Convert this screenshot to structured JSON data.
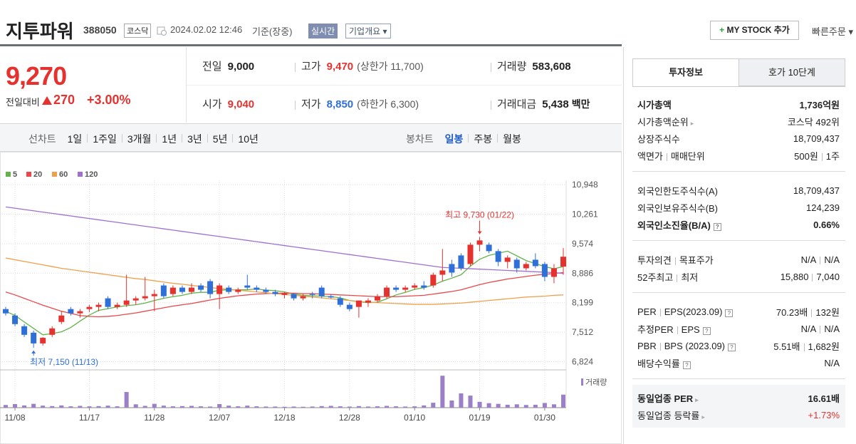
{
  "header": {
    "name": "지투파워",
    "code": "388050",
    "market": "코스닥",
    "datetime": "2024.02.02 12:46",
    "basis": "기준(장중)",
    "realtime": "실시간",
    "company_info": "기업개요",
    "my_stock": "MY STOCK 추가",
    "quick_order": "빠른주문"
  },
  "price": {
    "current": "9,270",
    "change_label": "전일대비",
    "change": "270",
    "change_rate": "+3.00%"
  },
  "quotes": [
    [
      {
        "label": "전일",
        "value": "9,000"
      },
      {
        "label": "고가",
        "value": "9,470",
        "limit": "(상한가 11,700)",
        "color": "#e6322f"
      },
      {
        "label": "거래량",
        "value": "583,608"
      }
    ],
    [
      {
        "label": "시가",
        "value": "9,040",
        "color": "#e6322f"
      },
      {
        "label": "저가",
        "value": "8,850",
        "limit": "(하한가 6,300)",
        "color": "#2f6fd8"
      },
      {
        "label": "거래대금",
        "value": "5,438",
        "unit": "백만"
      }
    ]
  ],
  "periods": {
    "line_label": "선차트",
    "line": [
      "1일",
      "1주일",
      "3개월",
      "1년",
      "3년",
      "5년",
      "10년"
    ],
    "candle_label": "봉차트",
    "candle": [
      "일봉",
      "주봉",
      "월봉"
    ],
    "active_candle": 0
  },
  "chart_data": {
    "type": "candlestick",
    "categories": [
      null,
      "11/08",
      null,
      null,
      null,
      null,
      null,
      null,
      null,
      "11/17",
      null,
      null,
      null,
      null,
      null,
      null,
      "11/28",
      null,
      null,
      null,
      null,
      null,
      null,
      "12/07",
      null,
      null,
      null,
      null,
      null,
      null,
      "12/18",
      null,
      null,
      null,
      null,
      null,
      null,
      "12/28",
      null,
      null,
      null,
      null,
      null,
      null,
      "01/10",
      null,
      null,
      null,
      null,
      null,
      null,
      "01/19",
      null,
      null,
      null,
      null,
      null,
      null,
      "01/30",
      null,
      null
    ],
    "open": [
      8050,
      7900,
      7650,
      7500,
      7250,
      7450,
      7750,
      8050,
      7950,
      8050,
      8100,
      8300,
      8100,
      8150,
      8250,
      8300,
      8350,
      8600,
      8400,
      8550,
      8450,
      8600,
      8700,
      8400,
      8550,
      8450,
      8600,
      8550,
      8500,
      8450,
      8380,
      8400,
      8300,
      8400,
      8550,
      8350,
      8300,
      8150,
      8100,
      8200,
      8250,
      8350,
      8550,
      8500,
      8550,
      8600,
      8600,
      8850,
      9100,
      9300,
      9100,
      9550,
      9550,
      9400,
      9150,
      9200,
      9000,
      9200,
      9100,
      8800,
      9040
    ],
    "high": [
      8100,
      7950,
      7700,
      7550,
      7400,
      7650,
      8000,
      8100,
      8050,
      8150,
      8200,
      8350,
      8200,
      8850,
      8350,
      8800,
      8500,
      8650,
      8600,
      8600,
      8650,
      8650,
      8750,
      8650,
      8600,
      8550,
      8850,
      8600,
      8550,
      8500,
      8450,
      8420,
      8400,
      8450,
      8600,
      8400,
      8350,
      8200,
      8250,
      8300,
      8400,
      8600,
      8600,
      8600,
      8650,
      8700,
      8900,
      9450,
      9200,
      9350,
      9600,
      9730,
      9600,
      9450,
      9300,
      9250,
      9150,
      9350,
      9150,
      9100,
      9470
    ],
    "low": [
      7900,
      7650,
      7400,
      7150,
      7200,
      7400,
      7700,
      7900,
      7850,
      7980,
      8000,
      8050,
      8050,
      8100,
      8150,
      8250,
      8000,
      8300,
      8350,
      8400,
      8400,
      8450,
      8300,
      8050,
      8400,
      8400,
      8500,
      8450,
      8400,
      8350,
      8300,
      8250,
      8250,
      8300,
      8300,
      8300,
      8100,
      8000,
      7850,
      8100,
      8200,
      8300,
      8450,
      8450,
      8500,
      8500,
      8550,
      8700,
      8800,
      8950,
      9050,
      9400,
      9350,
      9050,
      9000,
      8900,
      8950,
      9000,
      8700,
      8650,
      8850
    ],
    "close": [
      7950,
      7700,
      7450,
      7250,
      7380,
      7600,
      7900,
      7950,
      8000,
      8100,
      8150,
      8100,
      8150,
      8250,
      8300,
      8350,
      8400,
      8350,
      8550,
      8450,
      8550,
      8500,
      8400,
      8600,
      8450,
      8500,
      8550,
      8500,
      8450,
      8400,
      8420,
      8300,
      8350,
      8380,
      8350,
      8320,
      8150,
      8050,
      8250,
      8250,
      8350,
      8550,
      8500,
      8550,
      8600,
      8550,
      8850,
      8950,
      8900,
      9000,
      9550,
      9650,
      9400,
      9150,
      9250,
      9000,
      9100,
      9050,
      8800,
      9000,
      9270
    ],
    "up_color": "#e6322f",
    "down_color": "#2f6fd8",
    "series": [
      {
        "name": "5",
        "color": "#62b44a",
        "values": [
          8000,
          7900,
          7750,
          7600,
          7450,
          7480,
          7520,
          7620,
          7770,
          7910,
          8020,
          8060,
          8100,
          8130,
          8150,
          8190,
          8250,
          8300,
          8340,
          8370,
          8420,
          8440,
          8440,
          8490,
          8500,
          8500,
          8500,
          8520,
          8490,
          8480,
          8450,
          8400,
          8370,
          8360,
          8350,
          8340,
          8310,
          8250,
          8220,
          8200,
          8210,
          8290,
          8380,
          8440,
          8510,
          8550,
          8610,
          8700,
          8770,
          8850,
          9050,
          9210,
          9300,
          9350,
          9400,
          9290,
          9180,
          9110,
          9040,
          8990,
          9040
        ]
      },
      {
        "name": "20",
        "color": "#e8494c",
        "values": [
          8450,
          8380,
          8300,
          8220,
          8140,
          8070,
          8000,
          7950,
          7900,
          7880,
          7870,
          7880,
          7900,
          7930,
          7960,
          8000,
          8040,
          8080,
          8120,
          8150,
          8180,
          8220,
          8260,
          8300,
          8330,
          8360,
          8380,
          8400,
          8410,
          8420,
          8420,
          8420,
          8410,
          8410,
          8400,
          8390,
          8380,
          8370,
          8360,
          8350,
          8340,
          8340,
          8340,
          8350,
          8360,
          8370,
          8400,
          8430,
          8460,
          8500,
          8560,
          8620,
          8670,
          8710,
          8750,
          8780,
          8810,
          8840,
          8860,
          8880,
          8900
        ]
      },
      {
        "name": "60",
        "color": "#f0a04b",
        "values": [
          9240,
          9200,
          9160,
          9120,
          9080,
          9040,
          9000,
          8970,
          8940,
          8910,
          8880,
          8850,
          8820,
          8790,
          8760,
          8740,
          8710,
          8680,
          8650,
          8630,
          8600,
          8580,
          8550,
          8530,
          8510,
          8490,
          8470,
          8450,
          8430,
          8410,
          8390,
          8370,
          8350,
          8330,
          8310,
          8290,
          8270,
          8250,
          8230,
          8210,
          8200,
          8190,
          8180,
          8170,
          8160,
          8160,
          8160,
          8170,
          8180,
          8190,
          8210,
          8230,
          8250,
          8270,
          8290,
          8310,
          8330,
          8340,
          8350,
          8370,
          8380
        ]
      },
      {
        "name": "120",
        "color": "#a070d0",
        "values": [
          10430,
          10400,
          10370,
          10340,
          10310,
          10280,
          10250,
          10220,
          10190,
          10160,
          10130,
          10100,
          10070,
          10040,
          10010,
          9980,
          9950,
          9920,
          9890,
          9860,
          9830,
          9800,
          9770,
          9740,
          9710,
          9680,
          9650,
          9620,
          9590,
          9560,
          9530,
          9500,
          9470,
          9440,
          9410,
          9380,
          9350,
          9320,
          9290,
          9260,
          9230,
          9200,
          9170,
          9140,
          9110,
          9080,
          9050,
          9020,
          9010,
          9000,
          8990,
          8980,
          8970,
          8960,
          8950,
          8940,
          8930,
          8920,
          8910,
          8900,
          8880
        ]
      }
    ],
    "volume": {
      "name": "거래량",
      "color": "#9b7fc7",
      "lim": [
        0,
        1500000
      ],
      "values": [
        120000,
        160000,
        100000,
        170000,
        90000,
        70000,
        100000,
        60000,
        80000,
        60000,
        70000,
        90000,
        60000,
        700000,
        150000,
        80000,
        170000,
        90000,
        60000,
        70000,
        80000,
        60000,
        50000,
        160000,
        90000,
        60000,
        90000,
        60000,
        50000,
        50000,
        40000,
        50000,
        40000,
        50000,
        70000,
        80000,
        60000,
        50000,
        70000,
        50000,
        60000,
        80000,
        60000,
        50000,
        60000,
        100000,
        220000,
        1430000,
        320000,
        640000,
        540000,
        260000,
        200000,
        170000,
        130000,
        150000,
        120000,
        130000,
        210000,
        150000,
        583608
      ]
    },
    "ylim": [
      6600,
      11150
    ],
    "yticks": [
      {
        "value": 10948,
        "label": "10,948"
      },
      {
        "value": 10261,
        "label": "10,261"
      },
      {
        "value": 9574,
        "label": "9,574"
      },
      {
        "value": 8886,
        "label": "8,886"
      },
      {
        "value": 8199,
        "label": "8,199"
      },
      {
        "value": 7512,
        "label": "7,512"
      },
      {
        "value": 6824,
        "label": "6,824"
      }
    ],
    "grid": true,
    "annotations": [
      {
        "label": "최고 9,730 (01/22)",
        "of": "high",
        "color": "#e6322f"
      },
      {
        "label": "최저 7,150 (11/13)",
        "of": "low",
        "color": "#2f6fd8"
      }
    ]
  },
  "info": {
    "tabs": [
      "투자정보",
      "호가 10단계"
    ],
    "active_tab": 0,
    "groups": [
      {
        "rows": [
          {
            "label": [
              "시가총액"
            ],
            "value": [
              "1,736억원"
            ],
            "bold": true
          },
          {
            "label": [
              "시가총액순위"
            ],
            "arrow": true,
            "value": [
              "코스닥 492위"
            ]
          },
          {
            "label": [
              "상장주식수"
            ],
            "value": [
              "18,709,437"
            ]
          },
          {
            "label": [
              "액면가",
              "매매단위"
            ],
            "value": [
              "500원",
              "1주"
            ]
          }
        ]
      },
      {
        "rows": [
          {
            "label": [
              "외국인한도주식수(A)"
            ],
            "value": [
              "18,709,437"
            ]
          },
          {
            "label": [
              "외국인보유주식수(B)"
            ],
            "value": [
              "124,239"
            ]
          },
          {
            "label": [
              "외국인소진율(B/A)"
            ],
            "help": true,
            "bold": true,
            "value": [
              "0.66%"
            ]
          }
        ]
      },
      {
        "rows": [
          {
            "label": [
              "투자의견",
              "목표주가"
            ],
            "value": [
              "N/A",
              "N/A"
            ]
          },
          {
            "label": [
              "52주최고",
              "최저"
            ],
            "value": [
              "15,880",
              "7,040"
            ]
          }
        ]
      },
      {
        "rows": [
          {
            "label": [
              "PER",
              "EPS(2023.09)"
            ],
            "help": true,
            "value": [
              "70.23배",
              "132원"
            ]
          },
          {
            "label": [
              "추정PER",
              "EPS"
            ],
            "help": true,
            "value": [
              "N/A",
              "N/A"
            ]
          },
          {
            "label": [
              "PBR",
              "BPS (2023.09)"
            ],
            "help": true,
            "value": [
              "5.51배",
              "1,682원"
            ]
          },
          {
            "label": [
              "배당수익률"
            ],
            "help": true,
            "value": [
              "N/A"
            ]
          }
        ]
      },
      {
        "shaded": true,
        "rows": [
          {
            "label": [
              "동일업종 PER"
            ],
            "arrow": true,
            "bold": true,
            "value": [
              "16.61배"
            ]
          },
          {
            "label": [
              "동일업종 등락률"
            ],
            "arrow": true,
            "value": [
              "+1.73%"
            ],
            "color": "#e6322f"
          }
        ]
      }
    ]
  }
}
